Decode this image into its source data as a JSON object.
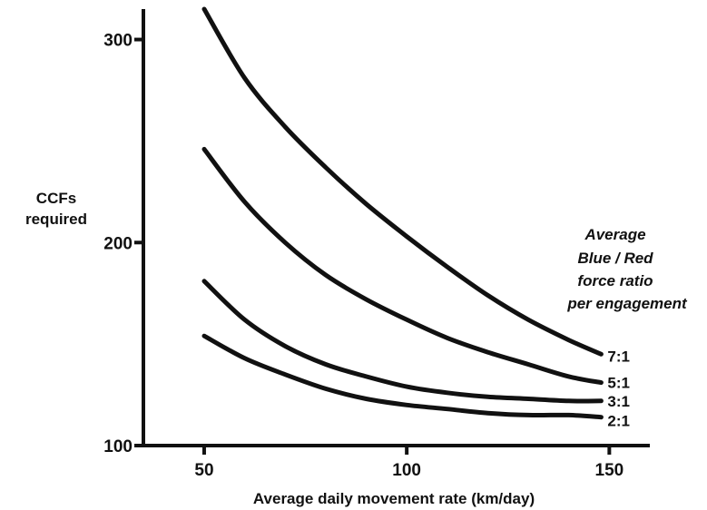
{
  "chart_data": {
    "type": "line",
    "title": "",
    "xlabel": "Average daily movement rate (km/day)",
    "ylabel_lines": [
      "CCFs",
      "required"
    ],
    "xlim": [
      35,
      160
    ],
    "ylim": [
      100,
      315
    ],
    "x_ticks": [
      50,
      100,
      150
    ],
    "y_ticks": [
      100,
      200,
      300
    ],
    "grid": false,
    "legend_title_lines": [
      "Average",
      "Blue / Red",
      "force ratio",
      "per engagement"
    ],
    "legend_position": "right",
    "series": [
      {
        "name": "7:1",
        "x": [
          50,
          60,
          70,
          80,
          90,
          100,
          110,
          120,
          130,
          140,
          148
        ],
        "y": [
          315,
          281,
          257,
          237,
          219,
          203,
          188,
          174,
          162,
          152,
          145
        ]
      },
      {
        "name": "5:1",
        "x": [
          50,
          60,
          70,
          80,
          90,
          100,
          110,
          120,
          130,
          140,
          148
        ],
        "y": [
          246,
          220,
          200,
          184,
          172,
          162,
          153,
          146,
          140,
          134,
          131
        ]
      },
      {
        "name": "3:1",
        "x": [
          50,
          60,
          70,
          80,
          90,
          100,
          110,
          120,
          130,
          140,
          148
        ],
        "y": [
          181,
          162,
          149,
          140,
          134,
          129,
          126,
          124,
          123,
          122,
          122
        ]
      },
      {
        "name": "2:1",
        "x": [
          50,
          60,
          70,
          80,
          90,
          100,
          110,
          120,
          130,
          140,
          148
        ],
        "y": [
          154,
          143,
          135,
          128,
          123,
          120,
          118,
          116,
          115,
          115,
          114
        ]
      }
    ]
  }
}
